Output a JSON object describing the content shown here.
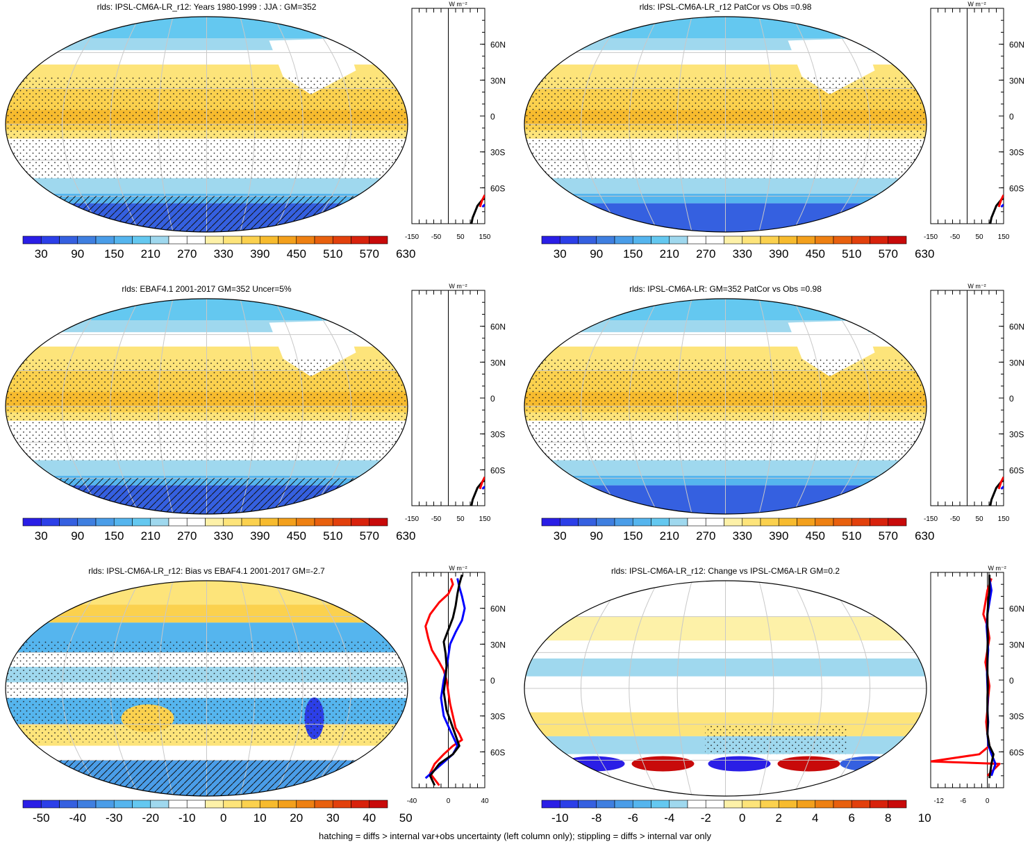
{
  "footer_note": "hatching = diffs > internal var+obs uncertainty (left column only); stippling = diffs > internal var only",
  "colors": {
    "abs_scale": [
      "#2a1ee6",
      "#2c3fe8",
      "#3560e0",
      "#3f7fe0",
      "#4a9de8",
      "#55b5ee",
      "#64c8f0",
      "#9fd8ee",
      "#ffffff",
      "#ffffff",
      "#fdf1a8",
      "#fde47a",
      "#fbd14e",
      "#f7bb2e",
      "#f3a01c",
      "#ee8012",
      "#e8600e",
      "#e2400c",
      "#d8220c",
      "#c80a0a"
    ],
    "diff_scale": [
      "#2a1ee6",
      "#2c3fe8",
      "#3560e0",
      "#3f7fe0",
      "#4a9de8",
      "#55b5ee",
      "#64c8f0",
      "#9fd8ee",
      "#ffffff",
      "#ffffff",
      "#fdf1a8",
      "#fde47a",
      "#fbd14e",
      "#f7bb2e",
      "#f3a01c",
      "#ee8012",
      "#e8600e",
      "#e2400c",
      "#d8220c",
      "#c80a0a"
    ]
  },
  "chart_data": [
    {
      "type": "heatmap",
      "title": "rlds: IPSL-CM6A-LR_r12: Years 1980-1999 : JJA : GM=352",
      "colorbar_ticks": [
        "30",
        "90",
        "150",
        "210",
        "270",
        "330",
        "390",
        "450",
        "510",
        "570",
        "630"
      ],
      "map_style": "absolute",
      "zonal_profile": {
        "xticks": [
          "-150",
          "-50",
          "50",
          "150"
        ],
        "xlim": [
          -150,
          150
        ],
        "units": "W m⁻²",
        "yticks": [
          "60N",
          "30N",
          "0",
          "30S",
          "60S"
        ],
        "series": [
          {
            "color": "#000000",
            "x": [
              95,
              100,
              120,
              140,
              150
            ],
            "y": [
              -90,
              -85,
              -75,
              -70,
              -68
            ]
          },
          {
            "color": "#ff0000",
            "x": [
              130,
              140,
              150
            ],
            "y": [
              -76,
              -70,
              -66
            ]
          },
          {
            "color": "#0000ff",
            "x": [
              140,
              150
            ],
            "y": [
              -76,
              -74
            ]
          }
        ]
      }
    },
    {
      "type": "heatmap",
      "title": "rlds: IPSL-CM6A-LR_r12 PatCor vs Obs =0.98",
      "colorbar_ticks": [
        "30",
        "90",
        "150",
        "210",
        "270",
        "330",
        "390",
        "450",
        "510",
        "570",
        "630"
      ],
      "map_style": "absolute",
      "zonal_profile": {
        "xticks": [
          "-150",
          "-50",
          "50",
          "150"
        ],
        "xlim": [
          -150,
          150
        ],
        "units": "W m⁻²",
        "yticks": [
          "60N",
          "30N",
          "0",
          "30S",
          "60S"
        ],
        "series": [
          {
            "color": "#000000",
            "x": [
              95,
              100,
              120,
              140,
              150
            ],
            "y": [
              -90,
              -85,
              -75,
              -70,
              -68
            ]
          },
          {
            "color": "#ff0000",
            "x": [
              130,
              140,
              150
            ],
            "y": [
              -76,
              -70,
              -66
            ]
          },
          {
            "color": "#0000ff",
            "x": [
              140,
              150
            ],
            "y": [
              -76,
              -74
            ]
          }
        ]
      }
    },
    {
      "type": "heatmap",
      "title": "rlds: EBAF4.1 2001-2017 GM=352 Uncer=5%",
      "colorbar_ticks": [
        "30",
        "90",
        "150",
        "210",
        "270",
        "330",
        "390",
        "450",
        "510",
        "570",
        "630"
      ],
      "map_style": "absolute",
      "zonal_profile": {
        "xticks": [
          "-150",
          "-50",
          "50",
          "150"
        ],
        "xlim": [
          -150,
          150
        ],
        "units": "W m⁻²",
        "yticks": [
          "60N",
          "30N",
          "0",
          "30S",
          "60S"
        ],
        "series": [
          {
            "color": "#000000",
            "x": [
              95,
              100,
              120,
              140,
              150
            ],
            "y": [
              -90,
              -85,
              -75,
              -70,
              -68
            ]
          },
          {
            "color": "#ff0000",
            "x": [
              130,
              140,
              150
            ],
            "y": [
              -76,
              -70,
              -66
            ]
          },
          {
            "color": "#0000ff",
            "x": [
              140,
              150
            ],
            "y": [
              -76,
              -74
            ]
          }
        ]
      }
    },
    {
      "type": "heatmap",
      "title": "rlds: IPSL-CM6A-LR: GM=352 PatCor vs Obs =0.98",
      "colorbar_ticks": [
        "30",
        "90",
        "150",
        "210",
        "270",
        "330",
        "390",
        "450",
        "510",
        "570",
        "630"
      ],
      "map_style": "absolute",
      "zonal_profile": {
        "xticks": [
          "-150",
          "-50",
          "50",
          "150"
        ],
        "xlim": [
          -150,
          150
        ],
        "units": "W m⁻²",
        "yticks": [
          "60N",
          "30N",
          "0",
          "30S",
          "60S"
        ],
        "series": [
          {
            "color": "#000000",
            "x": [
              95,
              100,
              120,
              140,
              150
            ],
            "y": [
              -90,
              -85,
              -75,
              -70,
              -68
            ]
          },
          {
            "color": "#ff0000",
            "x": [
              130,
              140,
              150
            ],
            "y": [
              -76,
              -70,
              -66
            ]
          },
          {
            "color": "#0000ff",
            "x": [
              140,
              150
            ],
            "y": [
              -76,
              -74
            ]
          }
        ]
      }
    },
    {
      "type": "heatmap",
      "title": "rlds: IPSL-CM6A-LR_r12: Bias vs EBAF4.1 2001-2017 GM=-2.7",
      "colorbar_ticks": [
        "-50",
        "-40",
        "-30",
        "-20",
        "-10",
        "0",
        "10",
        "20",
        "30",
        "40",
        "50"
      ],
      "map_style": "bias",
      "zonal_profile": {
        "xticks": [
          "-40",
          "0",
          "40"
        ],
        "xlim": [
          -40,
          40
        ],
        "units": "W m⁻²",
        "yticks": [
          "60N",
          "30N",
          "0",
          "30S",
          "60S"
        ],
        "series": [
          {
            "color": "#ff0000",
            "x": [
              3,
              5,
              0,
              -10,
              -20,
              -25,
              -22,
              -18,
              -10,
              -5,
              -2,
              0,
              2,
              5,
              8,
              12,
              15,
              5,
              -5,
              -15,
              -20,
              -10
            ],
            "y": [
              85,
              80,
              72,
              65,
              55,
              45,
              35,
              25,
              15,
              8,
              0,
              -10,
              -20,
              -30,
              -40,
              -45,
              -50,
              -55,
              -62,
              -70,
              -78,
              -88
            ]
          },
          {
            "color": "#0000ff",
            "x": [
              10,
              12,
              15,
              18,
              15,
              8,
              2,
              0,
              -2,
              -5,
              -8,
              -5,
              2,
              10,
              5,
              -10,
              -25
            ],
            "y": [
              85,
              78,
              70,
              60,
              50,
              40,
              30,
              20,
              10,
              0,
              -15,
              -30,
              -42,
              -55,
              -62,
              -72,
              -82
            ]
          },
          {
            "color": "#000000",
            "x": [
              15,
              12,
              10,
              8,
              5,
              0,
              -5,
              -3,
              -2,
              -3,
              -5,
              -2,
              5,
              12,
              5,
              -10,
              -20,
              -15
            ],
            "y": [
              88,
              80,
              72,
              62,
              52,
              42,
              32,
              22,
              12,
              2,
              -10,
              -25,
              -40,
              -55,
              -62,
              -70,
              -80,
              -88
            ]
          }
        ]
      }
    },
    {
      "type": "heatmap",
      "title": "rlds: IPSL-CM6A-LR_r12: Change vs IPSL-CM6A-LR GM=0.2",
      "colorbar_ticks": [
        "-10",
        "-8",
        "-6",
        "-4",
        "-2",
        "0",
        "2",
        "4",
        "6",
        "8",
        "10"
      ],
      "map_style": "change",
      "zonal_profile": {
        "xticks": [
          "-12",
          "-6",
          "0"
        ],
        "xlim": [
          -14,
          4
        ],
        "units": "W m⁻²",
        "yticks": [
          "60N",
          "30N",
          "0",
          "30S",
          "60S"
        ],
        "series": [
          {
            "color": "#ff0000",
            "x": [
              1,
              0,
              -0.5,
              -1,
              0,
              0.5,
              0,
              -0.5,
              0,
              0.5,
              0.2,
              0,
              -0.3,
              0,
              0.5,
              -2,
              -14,
              3,
              0
            ],
            "y": [
              85,
              75,
              65,
              55,
              45,
              35,
              25,
              15,
              5,
              -5,
              -15,
              -25,
              -35,
              -45,
              -55,
              -62,
              -68,
              -70,
              -80
            ]
          },
          {
            "color": "#0000ff",
            "x": [
              0.5,
              1,
              0.5,
              0,
              -0.2,
              0,
              0.2,
              0,
              -0.1,
              0,
              0.1,
              0,
              0.2,
              0,
              0.3,
              1,
              2,
              1
            ],
            "y": [
              85,
              75,
              65,
              55,
              45,
              35,
              25,
              15,
              5,
              -5,
              -15,
              -25,
              -35,
              -45,
              -55,
              -62,
              -70,
              -80
            ]
          },
          {
            "color": "#000000",
            "x": [
              0.5,
              0.5,
              0.2,
              0,
              0,
              0.1,
              0,
              0,
              0,
              0.1,
              0,
              0,
              0.1,
              0,
              0.5,
              1.5,
              1,
              0.5
            ],
            "y": [
              88,
              75,
              65,
              55,
              45,
              35,
              25,
              15,
              5,
              -5,
              -15,
              -25,
              -35,
              -45,
              -55,
              -62,
              -70,
              -82
            ]
          }
        ]
      }
    }
  ]
}
